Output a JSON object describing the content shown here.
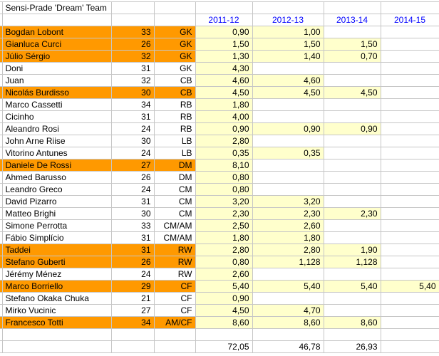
{
  "title": "Sensi-Prade 'Dream' Team",
  "seasons": [
    "2011-12",
    "2012-13",
    "2013-14",
    "2014-15"
  ],
  "players": [
    {
      "name": "Bogdan Lobont",
      "age": "33",
      "pos": "GK",
      "hl": true,
      "vals": [
        "0,90",
        "1,00",
        "",
        ""
      ]
    },
    {
      "name": "Gianluca Curci",
      "age": "26",
      "pos": "GK",
      "hl": true,
      "vals": [
        "1,50",
        "1,50",
        "1,50",
        ""
      ]
    },
    {
      "name": "Júlio Sérgio",
      "age": "32",
      "pos": "GK",
      "hl": true,
      "vals": [
        "1,30",
        "1,40",
        "0,70",
        ""
      ]
    },
    {
      "name": "Doni",
      "age": "31",
      "pos": "GK",
      "hl": false,
      "vals": [
        "4,30",
        "",
        "",
        ""
      ]
    },
    {
      "name": "Juan",
      "age": "32",
      "pos": "CB",
      "hl": false,
      "vals": [
        "4,60",
        "4,60",
        "",
        ""
      ]
    },
    {
      "name": "Nicolás Burdisso",
      "age": "30",
      "pos": "CB",
      "hl": true,
      "vals": [
        "4,50",
        "4,50",
        "4,50",
        ""
      ]
    },
    {
      "name": "Marco Cassetti",
      "age": "34",
      "pos": "RB",
      "hl": false,
      "vals": [
        "1,80",
        "",
        "",
        ""
      ]
    },
    {
      "name": "Cicinho",
      "age": "31",
      "pos": "RB",
      "hl": false,
      "vals": [
        "4,00",
        "",
        "",
        ""
      ]
    },
    {
      "name": "Aleandro Rosi",
      "age": "24",
      "pos": "RB",
      "hl": false,
      "vals": [
        "0,90",
        "0,90",
        "0,90",
        ""
      ]
    },
    {
      "name": "John Arne Riise",
      "age": "30",
      "pos": "LB",
      "hl": false,
      "vals": [
        "2,80",
        "",
        "",
        ""
      ]
    },
    {
      "name": "Vitorino Antunes",
      "age": "24",
      "pos": "LB",
      "hl": false,
      "vals": [
        "0,35",
        "0,35",
        "",
        ""
      ]
    },
    {
      "name": "Daniele De Rossi",
      "age": "27",
      "pos": "DM",
      "hl": true,
      "vals": [
        "8,10",
        "",
        "",
        ""
      ]
    },
    {
      "name": "Ahmed Barusso",
      "age": "26",
      "pos": "DM",
      "hl": false,
      "vals": [
        "0,80",
        "",
        "",
        ""
      ]
    },
    {
      "name": "Leandro Greco",
      "age": "24",
      "pos": "CM",
      "hl": false,
      "vals": [
        "0,80",
        "",
        "",
        ""
      ]
    },
    {
      "name": "David Pizarro",
      "age": "31",
      "pos": "CM",
      "hl": false,
      "vals": [
        "3,20",
        "3,20",
        "",
        ""
      ]
    },
    {
      "name": "Matteo Brighi",
      "age": "30",
      "pos": "CM",
      "hl": false,
      "vals": [
        "2,30",
        "2,30",
        "2,30",
        ""
      ]
    },
    {
      "name": "Simone Perrotta",
      "age": "33",
      "pos": "CM/AM",
      "hl": false,
      "vals": [
        "2,50",
        "2,60",
        "",
        ""
      ]
    },
    {
      "name": "Fábio Simplício",
      "age": "31",
      "pos": "CM/AM",
      "hl": false,
      "vals": [
        "1,80",
        "1,80",
        "",
        ""
      ]
    },
    {
      "name": "Taddei",
      "age": "31",
      "pos": "RW",
      "hl": true,
      "vals": [
        "2,80",
        "2,80",
        "1,90",
        ""
      ]
    },
    {
      "name": "Stefano Guberti",
      "age": "26",
      "pos": "RW",
      "hl": true,
      "vals": [
        "0,80",
        "1,128",
        "1,128",
        ""
      ]
    },
    {
      "name": "Jérémy Ménez",
      "age": "24",
      "pos": "RW",
      "hl": false,
      "vals": [
        "2,60",
        "",
        "",
        ""
      ]
    },
    {
      "name": "Marco Borriello",
      "age": "29",
      "pos": "CF",
      "hl": true,
      "vals": [
        "5,40",
        "5,40",
        "5,40",
        "5,40"
      ]
    },
    {
      "name": "Stefano Okaka Chuka",
      "age": "21",
      "pos": "CF",
      "hl": false,
      "vals": [
        "0,90",
        "",
        "",
        ""
      ]
    },
    {
      "name": "Mirko Vucinic",
      "age": "27",
      "pos": "CF",
      "hl": false,
      "vals": [
        "4,50",
        "4,70",
        "",
        ""
      ]
    },
    {
      "name": "Francesco Totti",
      "age": "34",
      "pos": "AM/CF",
      "hl": true,
      "vals": [
        "8,60",
        "8,60",
        "8,60",
        ""
      ]
    }
  ],
  "totals": [
    "72,05",
    "46,78",
    "26,93",
    ""
  ],
  "colors": {
    "highlight_row": "#FF9900",
    "value_cell": "#FFFFCC",
    "season_header_text": "#0000FF",
    "gridline": "#C6C6C6",
    "text": "#000000"
  }
}
